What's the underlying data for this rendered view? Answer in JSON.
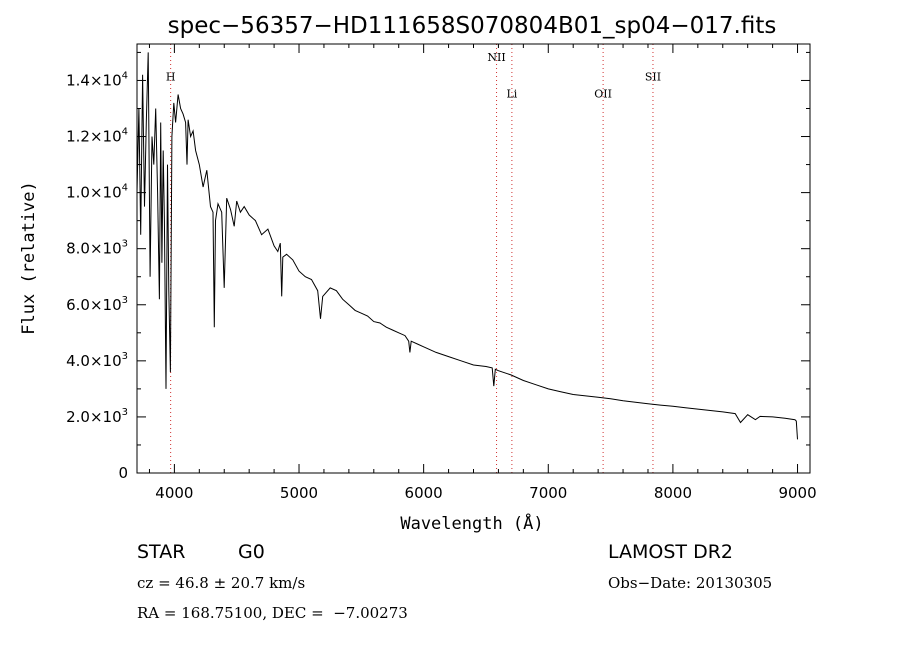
{
  "chart_data": {
    "type": "line",
    "title": "spec−56357−HD111658S070804B01_sp04−017.fits",
    "xlabel": "Wavelength (Å)",
    "ylabel": "Flux (relative)",
    "xlim": [
      3700,
      9100
    ],
    "ylim": [
      0,
      15300
    ],
    "x_ticks": [
      {
        "value": 4000,
        "label": "4000"
      },
      {
        "value": 5000,
        "label": "5000"
      },
      {
        "value": 6000,
        "label": "6000"
      },
      {
        "value": 7000,
        "label": "7000"
      },
      {
        "value": 8000,
        "label": "8000"
      },
      {
        "value": 9000,
        "label": "9000"
      }
    ],
    "y_ticks": [
      {
        "value": 0,
        "mant": "0",
        "exp": ""
      },
      {
        "value": 2000,
        "mant": "2.0×10",
        "exp": "3"
      },
      {
        "value": 4000,
        "mant": "4.0×10",
        "exp": "3"
      },
      {
        "value": 6000,
        "mant": "6.0×10",
        "exp": "3"
      },
      {
        "value": 8000,
        "mant": "8.0×10",
        "exp": "3"
      },
      {
        "value": 10000,
        "mant": "1.0×10",
        "exp": "4"
      },
      {
        "value": 12000,
        "mant": "1.2×10",
        "exp": "4"
      },
      {
        "value": 14000,
        "mant": "1.4×10",
        "exp": "4"
      }
    ],
    "lines": [
      {
        "label": "H",
        "x": 3970,
        "label_y": 14000
      },
      {
        "label": "NII",
        "x": 6585,
        "label_y": 14700
      },
      {
        "label": "Li",
        "x": 6708,
        "label_y": 13400
      },
      {
        "label": "OII",
        "x": 7440,
        "label_y": 13400
      },
      {
        "label": "SII",
        "x": 7840,
        "label_y": 14000
      }
    ],
    "series": [
      {
        "color": "#000000",
        "x": [
          3700,
          3715,
          3730,
          3745,
          3760,
          3775,
          3790,
          3805,
          3820,
          3835,
          3850,
          3865,
          3880,
          3890,
          3900,
          3910,
          3920,
          3933,
          3945,
          3955,
          3968,
          3980,
          3995,
          4010,
          4030,
          4050,
          4070,
          4090,
          4101,
          4110,
          4130,
          4150,
          4170,
          4200,
          4230,
          4260,
          4290,
          4310,
          4320,
          4330,
          4350,
          4380,
          4400,
          4420,
          4450,
          4480,
          4500,
          4530,
          4560,
          4600,
          4650,
          4700,
          4750,
          4800,
          4830,
          4850,
          4861,
          4870,
          4900,
          4950,
          5000,
          5050,
          5100,
          5150,
          5172,
          5190,
          5250,
          5300,
          5350,
          5400,
          5450,
          5500,
          5550,
          5600,
          5650,
          5700,
          5750,
          5800,
          5850,
          5880,
          5890,
          5900,
          5950,
          6000,
          6100,
          6200,
          6300,
          6400,
          6500,
          6550,
          6563,
          6575,
          6600,
          6700,
          6800,
          6900,
          7000,
          7100,
          7200,
          7300,
          7400,
          7500,
          7600,
          7700,
          7800,
          7900,
          8000,
          8100,
          8200,
          8300,
          8400,
          8500,
          8542,
          8600,
          8662,
          8700,
          8800,
          8900,
          8980,
          8990,
          9000
        ],
        "y": [
          10000,
          13000,
          8500,
          14200,
          9500,
          12500,
          15000,
          7000,
          12000,
          11000,
          13000,
          10000,
          6200,
          12500,
          7500,
          11500,
          9000,
          3000,
          11000,
          6500,
          3600,
          12000,
          13200,
          12500,
          13500,
          13000,
          12800,
          12500,
          11000,
          12600,
          12000,
          12200,
          11500,
          11000,
          10200,
          10800,
          9500,
          9300,
          5200,
          9000,
          9600,
          9300,
          6600,
          9800,
          9400,
          8800,
          9700,
          9300,
          9500,
          9200,
          9000,
          8500,
          8700,
          8100,
          7900,
          8200,
          6300,
          7700,
          7800,
          7600,
          7200,
          7000,
          6900,
          6500,
          5500,
          6300,
          6600,
          6500,
          6200,
          6000,
          5800,
          5700,
          5600,
          5400,
          5350,
          5200,
          5100,
          5000,
          4900,
          4700,
          4300,
          4700,
          4600,
          4500,
          4300,
          4150,
          4000,
          3850,
          3800,
          3750,
          3100,
          3700,
          3650,
          3500,
          3300,
          3150,
          3000,
          2900,
          2800,
          2750,
          2700,
          2650,
          2580,
          2520,
          2470,
          2420,
          2380,
          2330,
          2280,
          2230,
          2180,
          2120,
          1800,
          2080,
          1900,
          2020,
          2000,
          1950,
          1900,
          1850,
          1200
        ]
      }
    ]
  },
  "info": {
    "object_type": "STAR",
    "subclass": "G0",
    "cz": "cz = 46.8 ± 20.7 km/s",
    "coords": "RA = 168.75100, DEC =  −7.00273",
    "survey": "LAMOST DR2",
    "obs_date": "Obs−Date: 20130305"
  }
}
